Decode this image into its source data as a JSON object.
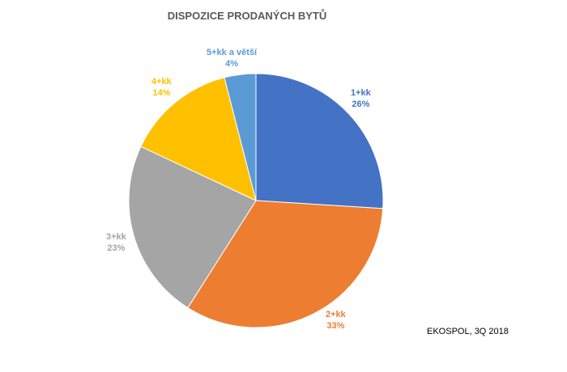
{
  "chart_data": {
    "type": "pie",
    "title": "DISPOZICE PRODANÝCH BYTŮ",
    "categories": [
      "1+kk",
      "2+kk",
      "3+kk",
      "4+kk",
      "5+kk a větší"
    ],
    "values": [
      26,
      33,
      23,
      14,
      4
    ],
    "value_labels": [
      "26%",
      "33%",
      "23%",
      "14%",
      "4%"
    ],
    "colors": [
      "#4472C4",
      "#ED7D31",
      "#A5A5A5",
      "#FFC000",
      "#5B9BD5"
    ],
    "start": "12 o'clock",
    "direction": "clockwise",
    "legend": "none"
  },
  "note": "EKOSPOL, 3Q 2018"
}
